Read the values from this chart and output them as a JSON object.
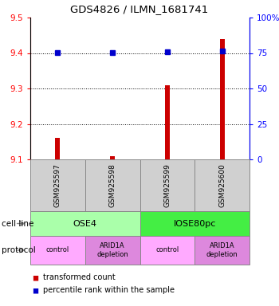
{
  "title": "GDS4826 / ILMN_1681741",
  "samples": [
    "GSM925597",
    "GSM925598",
    "GSM925599",
    "GSM925600"
  ],
  "transformed_counts": [
    9.16,
    9.11,
    9.31,
    9.44
  ],
  "dot_percentiles": [
    75.5,
    75.5,
    76.0,
    76.5
  ],
  "bar_bottom": 9.1,
  "ylim_left": [
    9.1,
    9.5
  ],
  "ylim_right": [
    0,
    100
  ],
  "yticks_left": [
    9.1,
    9.2,
    9.3,
    9.4,
    9.5
  ],
  "yticks_right": [
    0,
    25,
    50,
    75,
    100
  ],
  "ytick_right_labels": [
    "0",
    "25",
    "50",
    "75",
    "100%"
  ],
  "bar_color": "#cc0000",
  "dot_color": "#0000cc",
  "grid_lines": [
    9.2,
    9.3,
    9.4
  ],
  "cell_lines": [
    {
      "label": "OSE4",
      "span": [
        0,
        2
      ],
      "color": "#aaffaa"
    },
    {
      "label": "IOSE80pc",
      "span": [
        2,
        4
      ],
      "color": "#44ee44"
    }
  ],
  "protocols": [
    {
      "label": "control",
      "span": [
        0,
        1
      ],
      "color": "#ffaaff"
    },
    {
      "label": "ARID1A\ndepletion",
      "span": [
        1,
        2
      ],
      "color": "#dd88dd"
    },
    {
      "label": "control",
      "span": [
        2,
        3
      ],
      "color": "#ffaaff"
    },
    {
      "label": "ARID1A\ndepletion",
      "span": [
        3,
        4
      ],
      "color": "#dd88dd"
    }
  ],
  "legend_bar_label": "transformed count",
  "legend_dot_label": "percentile rank within the sample",
  "cell_line_label": "cell line",
  "protocol_label": "protocol",
  "sample_box_color": "#d0d0d0",
  "bar_width": 0.09
}
